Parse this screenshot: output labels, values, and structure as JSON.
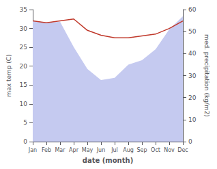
{
  "chart_data": {
    "type": "line",
    "xlabel": "date (month)",
    "ylabel": "max temp (C)",
    "y2label": "med. precipitation (kg/m2)",
    "categories": [
      "Jan",
      "Feb",
      "Mar",
      "Apr",
      "May",
      "Jun",
      "Jul",
      "Aug",
      "Sep",
      "Oct",
      "Nov",
      "Dec"
    ],
    "series": [
      {
        "type": "area",
        "axis": "y2",
        "color": "#c5caf0",
        "values": [
          55.0,
          54.0,
          54.5,
          43.0,
          33.0,
          28.0,
          29.0,
          35.0,
          37.0,
          42.0,
          51.0,
          57.0
        ]
      },
      {
        "type": "line",
        "color": "#c0392b",
        "values": [
          32.0,
          31.5,
          32.0,
          32.5,
          29.5,
          28.2,
          27.5,
          27.5,
          28.0,
          28.5,
          30.0,
          32.0
        ]
      }
    ],
    "ylim": [
      0,
      35
    ],
    "yticks": [
      0,
      5,
      10,
      15,
      20,
      25,
      30,
      35
    ],
    "y2lim": [
      0,
      60
    ],
    "y2ticks": [
      0,
      10,
      20,
      30,
      40,
      50,
      60
    ],
    "grid": false
  }
}
